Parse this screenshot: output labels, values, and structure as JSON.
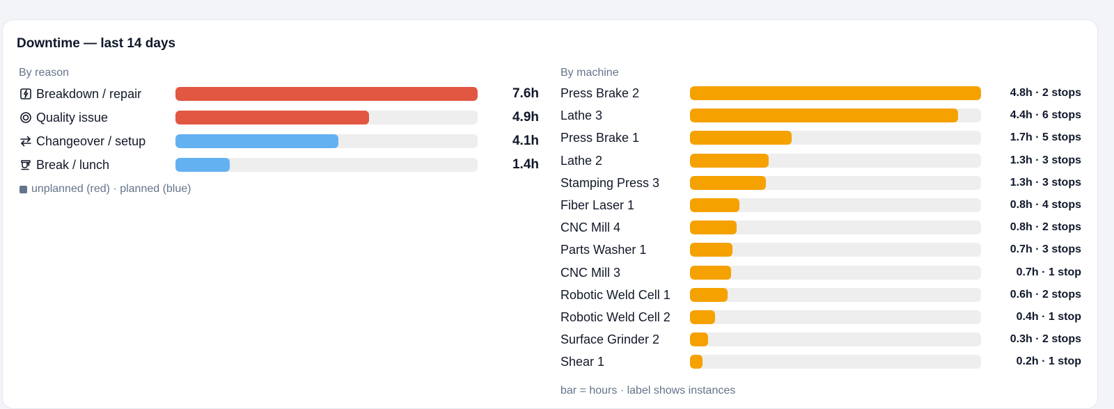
{
  "card": {
    "title": "Downtime — last 14 days"
  },
  "by_reason": {
    "label": "By reason",
    "legend": "unplanned (red) · planned (blue)",
    "legend_color": "#64748b",
    "items": [
      {
        "label": "Breakdown / repair",
        "value": "7.6h",
        "fraction": 1.0,
        "icon": "lightning-icon",
        "color": "#e15741"
      },
      {
        "label": "Quality issue",
        "value": "4.9h",
        "fraction": 0.64,
        "icon": "target-icon",
        "color": "#e15741"
      },
      {
        "label": "Changeover / setup",
        "value": "4.1h",
        "fraction": 0.54,
        "icon": "swap-arrows-icon",
        "color": "#64b1f2"
      },
      {
        "label": "Break / lunch",
        "value": "1.4h",
        "fraction": 0.18,
        "icon": "cup-icon",
        "color": "#64b1f2"
      }
    ]
  },
  "by_machine": {
    "label": "By machine",
    "footnote": "bar = hours · label shows instances",
    "color": "#f5a100",
    "items": [
      {
        "label": "Press Brake 2",
        "value": "4.8h · 2 stops",
        "fraction": 1.0
      },
      {
        "label": "Lathe 3",
        "value": "4.4h · 6 stops",
        "fraction": 0.92
      },
      {
        "label": "Press Brake 1",
        "value": "1.7h · 5 stops",
        "fraction": 0.35
      },
      {
        "label": "Lathe 2",
        "value": "1.3h · 3 stops",
        "fraction": 0.27
      },
      {
        "label": "Stamping Press 3",
        "value": "1.3h · 3 stops",
        "fraction": 0.26
      },
      {
        "label": "Fiber Laser 1",
        "value": "0.8h · 4 stops",
        "fraction": 0.17
      },
      {
        "label": "CNC Mill 4",
        "value": "0.8h · 2 stops",
        "fraction": 0.16
      },
      {
        "label": "Parts Washer 1",
        "value": "0.7h · 3 stops",
        "fraction": 0.145
      },
      {
        "label": "CNC Mill 3",
        "value": "0.7h · 1 stop",
        "fraction": 0.14
      },
      {
        "label": "Robotic Weld Cell 1",
        "value": "0.6h · 2 stops",
        "fraction": 0.13
      },
      {
        "label": "Robotic Weld Cell 2",
        "value": "0.4h · 1 stop",
        "fraction": 0.087
      },
      {
        "label": "Surface Grinder 2",
        "value": "0.3h · 2 stops",
        "fraction": 0.063
      },
      {
        "label": "Shear 1",
        "value": "0.2h · 1 stop",
        "fraction": 0.042
      }
    ]
  }
}
